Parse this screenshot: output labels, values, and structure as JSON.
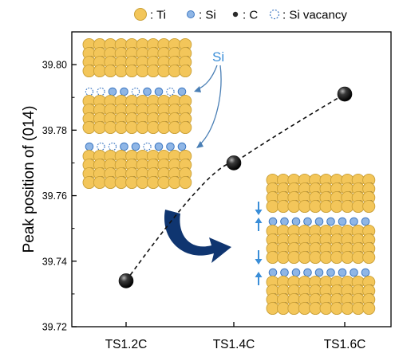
{
  "colors": {
    "ti": "#f3c65a",
    "ti_stroke": "#caa037",
    "si": "#8fb6e6",
    "si_stroke": "#3e78c2",
    "c": "#2b2b2b",
    "accent_blue": "#3a8ed8",
    "curved_arrow": "#0f3570",
    "marker": "#111111"
  },
  "legend": [
    {
      "key": "ti",
      "label": ": Ti"
    },
    {
      "key": "si",
      "label": ": Si"
    },
    {
      "key": "c",
      "label": ": C"
    },
    {
      "key": "vacancy",
      "label": ": Si vacancy"
    }
  ],
  "annotation": {
    "si_label": "Si"
  },
  "chart_data": {
    "type": "scatter",
    "title": "",
    "xlabel": "",
    "ylabel": "Peak position of (014)",
    "categories": [
      "TS1.2C",
      "TS1.4C",
      "TS1.6C"
    ],
    "values": [
      39.734,
      39.77,
      39.791
    ],
    "ylim": [
      39.72,
      39.81
    ],
    "yticks": [
      39.72,
      39.74,
      39.76,
      39.78,
      39.8
    ],
    "ytick_labels": [
      "39.72",
      "39.74",
      "39.76",
      "39.78",
      "39.80"
    ],
    "trend_line": "dashed",
    "grid": false,
    "legend_position": "top"
  }
}
